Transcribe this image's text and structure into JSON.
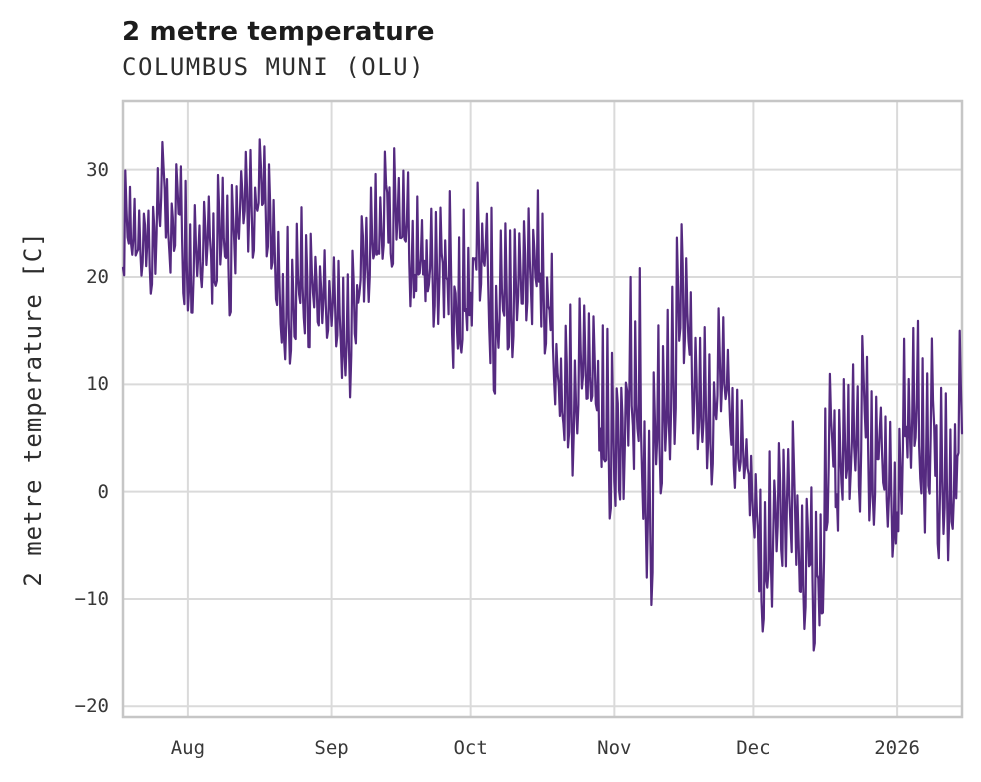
{
  "chart_data": {
    "type": "line",
    "title": "2 metre temperature",
    "subtitle": "COLUMBUS MUNI (OLU)",
    "station": "COLUMBUS MUNI (OLU)",
    "ylabel": "2 metre temperature [C]",
    "xlabel": "",
    "legend": "none",
    "grid": true,
    "x_tick_labels": [
      "Aug",
      "Sep",
      "Oct",
      "Nov",
      "Dec",
      "2026"
    ],
    "x_tick_days": [
      14,
      45,
      75,
      106,
      136,
      167
    ],
    "x_range_days": [
      0,
      181
    ],
    "y_tick_labels": [
      "30",
      "20",
      "10",
      "0",
      "−10",
      "−20"
    ],
    "y_ticks": [
      30,
      20,
      10,
      0,
      -10,
      -20
    ],
    "ylim": [
      -21,
      36.4
    ],
    "line_color": "#552a80",
    "line_width": 2.2,
    "grid_color": "#dadada",
    "spine_color": "#c6c6c6",
    "text_color": "#2d2d2d",
    "series": [
      {
        "name": "2 metre temperature",
        "units": "C",
        "anchor_interval_days": 3,
        "samples_per_day": 4,
        "noise_seed": 7,
        "envelope_low": [
          20,
          19,
          18,
          20,
          19,
          13,
          15,
          13,
          18,
          19,
          20,
          16,
          10.5,
          10,
          13,
          11,
          5.5,
          12,
          15,
          18,
          17,
          15,
          14,
          13,
          7.5,
          13,
          15,
          3.5,
          10,
          13,
          12,
          6,
          -2,
          3,
          -1,
          -5.5,
          -2,
          -8,
          -11.4,
          2,
          5,
          2,
          1,
          0,
          -3,
          -5,
          -18.5,
          -10,
          -8.5,
          -13,
          -18.3,
          -7,
          -9,
          -3,
          -5,
          -11.5,
          -4,
          -3,
          -5,
          -10.8,
          -5
        ],
        "envelope_high": [
          31,
          29,
          28,
          33.5,
          33,
          27,
          27,
          30,
          30,
          32,
          33,
          28,
          24,
          27,
          23,
          22,
          21,
          25,
          29,
          34,
          30,
          29.5,
          29,
          30,
          26,
          28,
          31,
          24,
          26,
          28.5,
          28,
          21,
          18,
          18,
          16,
          15,
          17,
          23,
          10,
          21,
          26.5,
          17,
          15,
          17.5,
          10,
          7,
          0,
          7.5,
          9,
          1,
          2,
          13.5,
          13,
          14,
          17,
          5,
          14,
          15.5,
          18,
          8,
          15
        ]
      }
    ]
  }
}
